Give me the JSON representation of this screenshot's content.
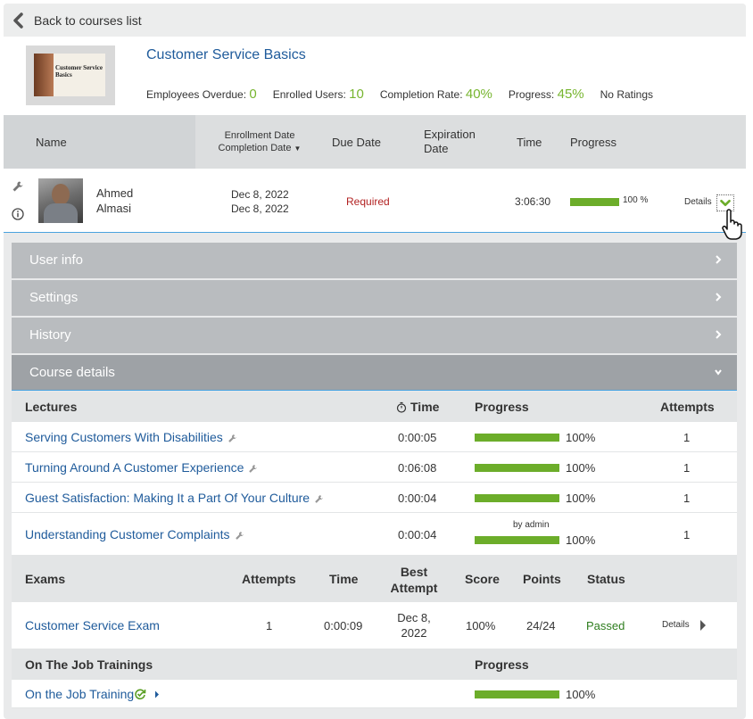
{
  "nav": {
    "back_label": "Back to courses list"
  },
  "course": {
    "title": "Customer Service Basics",
    "thumbnail_text": "Customer Service Basics",
    "stats": {
      "overdue_label": "Employees Overdue:",
      "overdue_value": "0",
      "enrolled_label": "Enrolled Users:",
      "enrolled_value": "10",
      "completion_label": "Completion Rate:",
      "completion_value": "40%",
      "progress_label": "Progress:",
      "progress_value": "45%",
      "ratings": "No Ratings"
    }
  },
  "table_header": {
    "name": "Name",
    "enrollment_date": "Enrollment Date",
    "completion_date": "Completion Date",
    "due_date": "Due Date",
    "expiration_date": "Expiration Date",
    "time": "Time",
    "progress": "Progress"
  },
  "user": {
    "first_name": "Ahmed",
    "last_name": "Almasi",
    "enrollment_date": "Dec 8, 2022",
    "completion_date": "Dec 8, 2022",
    "due": "Required",
    "time": "3:06:30",
    "progress_fraction": 1.0,
    "progress_text": "100 %",
    "details_label": "Details"
  },
  "accordion": {
    "user_info": "User info",
    "settings": "Settings",
    "history": "History",
    "course_details": "Course details"
  },
  "lectures": {
    "header": {
      "name": "Lectures",
      "time": "Time",
      "progress": "Progress",
      "attempts": "Attempts"
    },
    "rows": [
      {
        "title": "Serving Customers With Disabilities",
        "time": "0:00:05",
        "progress_fraction": 1.0,
        "progress_text": "100%",
        "attempts": "1",
        "note": ""
      },
      {
        "title": "Turning Around A Customer Experience",
        "time": "0:06:08",
        "progress_fraction": 1.0,
        "progress_text": "100%",
        "attempts": "1",
        "note": ""
      },
      {
        "title": "Guest Satisfaction: Making It a Part Of Your Culture",
        "time": "0:00:04",
        "progress_fraction": 1.0,
        "progress_text": "100%",
        "attempts": "1",
        "note": ""
      },
      {
        "title": "Understanding Customer Complaints",
        "time": "0:00:04",
        "progress_fraction": 1.0,
        "progress_text": "100%",
        "attempts": "1",
        "note": "by admin"
      }
    ]
  },
  "exams": {
    "header": {
      "name": "Exams",
      "attempts": "Attempts",
      "time": "Time",
      "best_attempt": "Best Attempt",
      "score": "Score",
      "points": "Points",
      "status": "Status"
    },
    "rows": [
      {
        "title": "Customer Service Exam",
        "attempts": "1",
        "time": "0:00:09",
        "best_attempt": "Dec 8, 2022",
        "score": "100%",
        "points": "24/24",
        "status": "Passed",
        "details_label": "Details"
      }
    ]
  },
  "trainings": {
    "header": {
      "name": "On The Job Trainings",
      "progress": "Progress"
    },
    "rows": [
      {
        "title": "On the Job Training",
        "progress_fraction": 1.0,
        "progress_text": "100%"
      }
    ]
  },
  "colors": {
    "link": "#1f5b9b",
    "accent_green": "#77b52f",
    "bar_green": "#6cad2a",
    "required_red": "#b22222",
    "passed_green": "#2e7d1e"
  }
}
